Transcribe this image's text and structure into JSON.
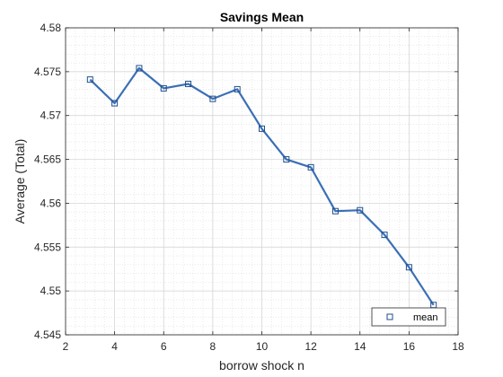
{
  "chart_data": {
    "type": "line",
    "title": "Savings Mean",
    "xlabel": "borrow shock n",
    "ylabel": "Average (Total)",
    "xlim": [
      2,
      18
    ],
    "ylim": [
      4.545,
      4.58
    ],
    "x_ticks": [
      2,
      4,
      6,
      8,
      10,
      12,
      14,
      16,
      18
    ],
    "y_ticks": [
      "4.545",
      "4.55",
      "4.555",
      "4.56",
      "4.565",
      "4.57",
      "4.575",
      "4.58"
    ],
    "grid": "major and minor, dotted",
    "legend_position": "bottom-right",
    "series": [
      {
        "name": "mean",
        "color": "#3a6fb5",
        "marker": "square",
        "x": [
          3,
          4,
          5,
          6,
          7,
          8,
          9,
          10,
          11,
          12,
          13,
          14,
          15,
          16,
          17
        ],
        "y": [
          4.5741,
          4.5714,
          4.5754,
          4.5731,
          4.5736,
          4.5719,
          4.573,
          4.5685,
          4.565,
          4.5641,
          4.5591,
          4.5592,
          4.5564,
          4.5527,
          4.5484
        ]
      }
    ]
  }
}
